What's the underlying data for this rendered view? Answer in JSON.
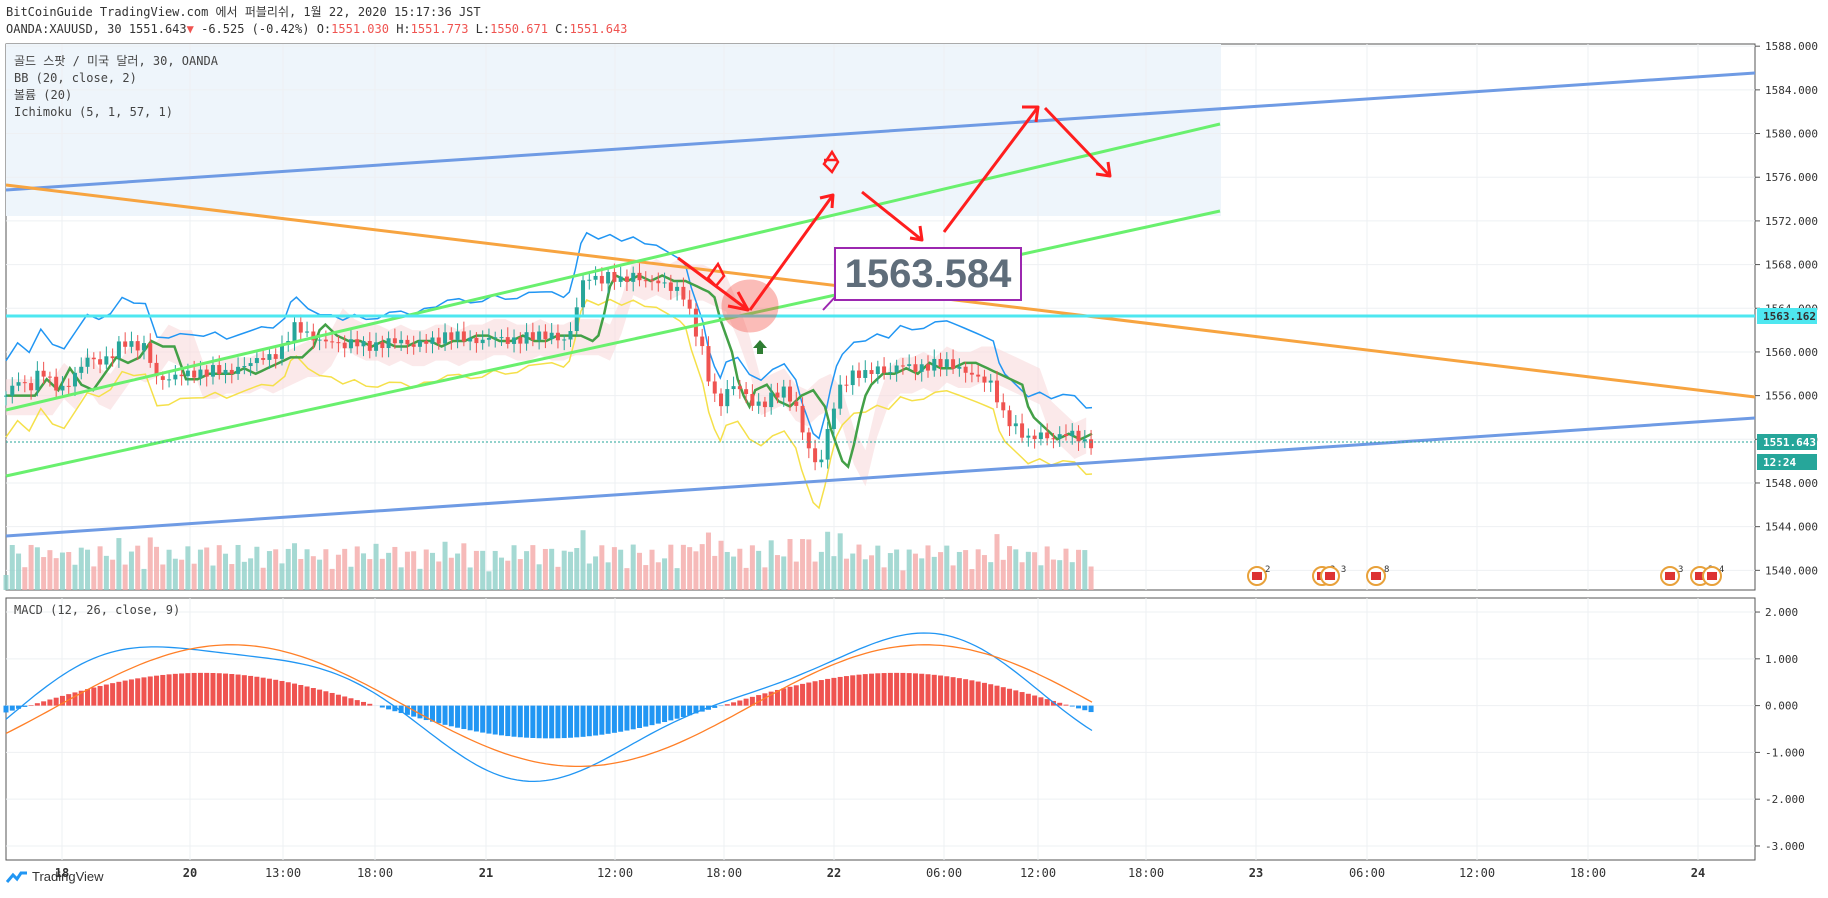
{
  "header": {
    "line1": "BitCoinGuide TradingView.com 에서 퍼블리쉬, 1월 22, 2020 15:17:36 JST",
    "symbol": "OANDA:XAUUSD, 30",
    "last": "1551.643",
    "change": "-6.525 (-0.42%)",
    "open_label": "O:",
    "open": "1551.030",
    "high_label": "H:",
    "high": "1551.773",
    "low_label": "L:",
    "low": "1550.671",
    "close_label": "C:",
    "close": "1551.643"
  },
  "legend": {
    "title": "골드 스팟 / 미국 달러, 30, OANDA",
    "bb": "BB (20, close, 2)",
    "volume": "볼륨 (20)",
    "ichimoku": "Ichimoku (5, 1, 57, 1)"
  },
  "macd_legend": "MACD (12, 26, close, 9)",
  "annotation_price": "1563.584",
  "footer": {
    "brand": "TradingView"
  },
  "colors": {
    "up": "#26a69a",
    "down": "#ef5350",
    "bb": "#2196f3",
    "bb_fill": "#e3f2fd",
    "basis": "#43a047",
    "channel_green": "#69f06e",
    "channel_blue": "#6f9be4",
    "orange": "#f7a440",
    "cyan": "#4ee7f0",
    "red_arrow": "#ff1e1e",
    "purple": "#9c27b0"
  },
  "chart_data": {
    "type": "candlestick",
    "symbol": "OANDA:XAUUSD",
    "timeframe": "30",
    "price_axis": {
      "ticks": [
        1540,
        1544,
        1548,
        1552,
        1556,
        1560,
        1564,
        1568,
        1572,
        1576,
        1580,
        1584,
        1588
      ],
      "tick_labels": [
        "1540.000",
        "1544.000",
        "1548.000",
        "1552.000",
        "1556.000",
        "1560.000",
        "1564.000",
        "1568.000",
        "1572.000",
        "1576.000",
        "1580.000",
        "1584.000",
        "1588.000"
      ],
      "range": [
        1538.2,
        1588.2
      ]
    },
    "macd_axis": {
      "ticks": [
        2,
        1,
        0,
        -1,
        -2,
        -3
      ],
      "tick_labels": [
        "2.000",
        "1.000",
        "0.000",
        "-1.000",
        "-2.000",
        "-3.000"
      ],
      "range": [
        -3.3,
        2.3
      ]
    },
    "time_axis": {
      "labels": [
        "18",
        "20",
        "13:00",
        "18:00",
        "21",
        "12:00",
        "18:00",
        "22",
        "06:00",
        "12:00",
        "18:00",
        "23",
        "06:00",
        "12:00",
        "18:00",
        "24"
      ]
    },
    "price_labels": [
      {
        "value": "1563.162",
        "color": "#4ee7f0"
      },
      {
        "value": "1551.643",
        "color": "#26a69a"
      },
      {
        "value": "12:24",
        "color": "#26a69a"
      }
    ],
    "calendar_events": [
      "2",
      "2 3",
      "8",
      "3",
      "2 4"
    ],
    "close_profile": [
      [
        0,
        1556
      ],
      [
        10,
        1557.5
      ],
      [
        20,
        1556.5
      ],
      [
        30,
        1558.5
      ],
      [
        40,
        1557
      ],
      [
        50,
        1556.5
      ],
      [
        60,
        1558
      ],
      [
        70,
        1559.5
      ],
      [
        80,
        1559
      ],
      [
        90,
        1559.5
      ],
      [
        100,
        1561
      ],
      [
        110,
        1560.5
      ],
      [
        120,
        1560.5
      ],
      [
        130,
        1557.5
      ],
      [
        140,
        1557.5
      ],
      [
        150,
        1558
      ],
      [
        160,
        1558
      ],
      [
        170,
        1558
      ],
      [
        180,
        1558.5
      ],
      [
        190,
        1558
      ],
      [
        200,
        1558.5
      ],
      [
        210,
        1559
      ],
      [
        220,
        1559.5
      ],
      [
        230,
        1559.5
      ],
      [
        240,
        1560.5
      ],
      [
        245,
        1562
      ],
      [
        250,
        1562.5
      ],
      [
        260,
        1561.5
      ],
      [
        270,
        1561
      ],
      [
        280,
        1561
      ],
      [
        290,
        1560.5
      ],
      [
        300,
        1561
      ],
      [
        310,
        1560.5
      ],
      [
        320,
        1560.5
      ],
      [
        330,
        1561
      ],
      [
        340,
        1561
      ],
      [
        350,
        1560.5
      ],
      [
        360,
        1561
      ],
      [
        370,
        1561
      ],
      [
        380,
        1561.5
      ],
      [
        390,
        1561.5
      ],
      [
        400,
        1561
      ],
      [
        410,
        1561
      ],
      [
        420,
        1561.5
      ],
      [
        430,
        1561
      ],
      [
        440,
        1561
      ],
      [
        450,
        1561.5
      ],
      [
        460,
        1561.5
      ],
      [
        470,
        1561.5
      ],
      [
        480,
        1561
      ],
      [
        485,
        1561.5
      ],
      [
        490,
        1563.5
      ],
      [
        495,
        1566
      ],
      [
        500,
        1567
      ],
      [
        510,
        1566.5
      ],
      [
        520,
        1567
      ],
      [
        530,
        1566.5
      ],
      [
        540,
        1567
      ],
      [
        550,
        1566.5
      ],
      [
        560,
        1566.5
      ],
      [
        570,
        1566
      ],
      [
        580,
        1565.5
      ],
      [
        585,
        1565
      ],
      [
        590,
        1563
      ],
      [
        595,
        1561.5
      ],
      [
        600,
        1560
      ],
      [
        605,
        1557.5
      ],
      [
        610,
        1556
      ],
      [
        615,
        1555
      ],
      [
        620,
        1556.5
      ],
      [
        630,
        1557
      ],
      [
        640,
        1555.5
      ],
      [
        650,
        1555
      ],
      [
        660,
        1556
      ],
      [
        670,
        1556.5
      ],
      [
        680,
        1555
      ],
      [
        685,
        1553
      ],
      [
        690,
        1551.5
      ],
      [
        695,
        1550
      ],
      [
        700,
        1549.5
      ],
      [
        705,
        1551.5
      ],
      [
        710,
        1554
      ],
      [
        715,
        1556
      ],
      [
        720,
        1557
      ],
      [
        730,
        1558
      ],
      [
        740,
        1558
      ],
      [
        750,
        1558.5
      ],
      [
        760,
        1558
      ],
      [
        770,
        1559
      ],
      [
        780,
        1558.5
      ],
      [
        790,
        1558.5
      ],
      [
        800,
        1559
      ],
      [
        810,
        1559
      ],
      [
        820,
        1558.5
      ],
      [
        830,
        1558
      ],
      [
        840,
        1557.5
      ],
      [
        850,
        1557
      ],
      [
        855,
        1555
      ],
      [
        860,
        1554
      ],
      [
        870,
        1553
      ],
      [
        880,
        1552
      ],
      [
        890,
        1552.5
      ],
      [
        900,
        1552
      ],
      [
        910,
        1552.5
      ],
      [
        920,
        1552.5
      ],
      [
        925,
        1552
      ],
      [
        930,
        1551.5
      ],
      [
        935,
        1551.6
      ]
    ]
  }
}
